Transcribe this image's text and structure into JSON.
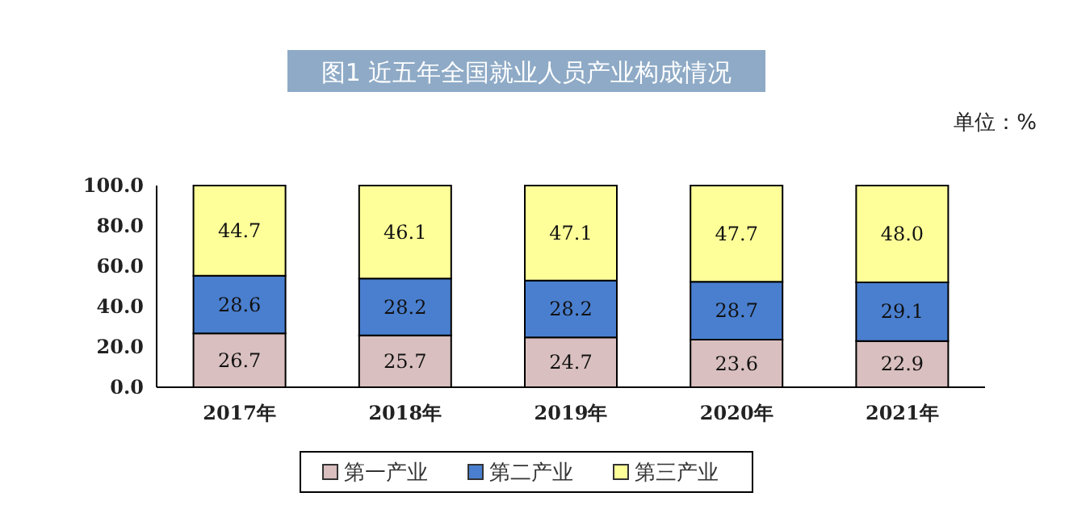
{
  "chart_data": {
    "type": "bar",
    "stacked": true,
    "title": "图1  近五年全国就业人员产业构成情况",
    "annotations": [
      "单位：%"
    ],
    "categories": [
      "2017年",
      "2018年",
      "2019年",
      "2020年",
      "2021年"
    ],
    "series": [
      {
        "name": "第一产业",
        "color": "#d9bfbf",
        "values": [
          26.7,
          25.7,
          24.7,
          23.6,
          22.9
        ],
        "value_labels": [
          "26.7",
          "25.7",
          "24.7",
          "23.6",
          "22.9"
        ]
      },
      {
        "name": "第二产业",
        "color": "#4a7fcf",
        "values": [
          28.6,
          28.2,
          28.2,
          28.7,
          29.1
        ],
        "value_labels": [
          "28.6",
          "28.2",
          "28.2",
          "28.7",
          "29.1"
        ]
      },
      {
        "name": "第三产业",
        "color": "#ffff99",
        "values": [
          44.7,
          46.1,
          47.1,
          47.7,
          48.0
        ],
        "value_labels": [
          "44.7",
          "46.1",
          "47.1",
          "47.7",
          "48.0"
        ]
      }
    ],
    "ylim": [
      0,
      100
    ],
    "yticks": [
      {
        "value": 0,
        "label": "0.0"
      },
      {
        "value": 20,
        "label": "20.0"
      },
      {
        "value": 40,
        "label": "40.0"
      },
      {
        "value": 60,
        "label": "60.0"
      },
      {
        "value": 80,
        "label": "80.0"
      },
      {
        "value": 100,
        "label": "100.0"
      }
    ],
    "grid": false,
    "legend": "bottom"
  }
}
